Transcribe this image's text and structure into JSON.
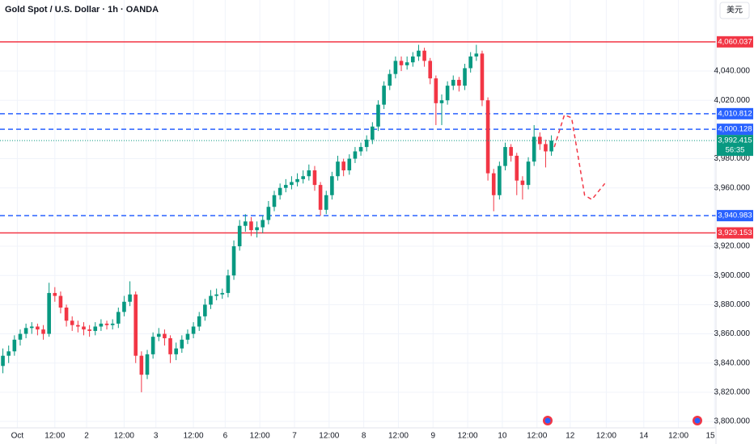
{
  "chart_data": {
    "type": "candlestick",
    "title": "Gold Spot / U.S. Dollar · 1h · OANDA",
    "currency": "美元",
    "countdown": "56:35",
    "xlim": [
      0,
      248
    ],
    "ylim": [
      3795.6,
      4088.7
    ],
    "grid": true,
    "up_color": "#089981",
    "down_color": "#f23645",
    "yticks": [
      {
        "value": 3800,
        "label": "3,800.000"
      },
      {
        "value": 3820,
        "label": "3,820.000"
      },
      {
        "value": 3840,
        "label": "3,840.000"
      },
      {
        "value": 3860,
        "label": "3,860.000"
      },
      {
        "value": 3880,
        "label": "3,880.000"
      },
      {
        "value": 3900,
        "label": "3,900.000"
      },
      {
        "value": 3920,
        "label": "3,920.000"
      },
      {
        "value": 3960,
        "label": "3,960.000"
      },
      {
        "value": 3980,
        "label": "3,980.000"
      },
      {
        "value": 4020,
        "label": "4,020.000"
      },
      {
        "value": 4040,
        "label": "4,040.000"
      }
    ],
    "xticks": [
      {
        "value": 6,
        "label": "Oct"
      },
      {
        "value": 19,
        "label": "12:00"
      },
      {
        "value": 30,
        "label": "2"
      },
      {
        "value": 43,
        "label": "12:00"
      },
      {
        "value": 54,
        "label": "3"
      },
      {
        "value": 67,
        "label": "12:00"
      },
      {
        "value": 78,
        "label": "6"
      },
      {
        "value": 90,
        "label": "12:00"
      },
      {
        "value": 102,
        "label": "7"
      },
      {
        "value": 114,
        "label": "12:00"
      },
      {
        "value": 126,
        "label": "8"
      },
      {
        "value": 138,
        "label": "12:00"
      },
      {
        "value": 150,
        "label": "9"
      },
      {
        "value": 162,
        "label": "12:00"
      },
      {
        "value": 174,
        "label": "10"
      },
      {
        "value": 186,
        "label": "12:00"
      },
      {
        "value": 197.5,
        "label": "12"
      },
      {
        "value": 210,
        "label": "12:00"
      },
      {
        "value": 223,
        "label": "14"
      },
      {
        "value": 235,
        "label": "12:00"
      },
      {
        "value": 247.5,
        "label": "15"
      }
    ],
    "levels": [
      {
        "value": 4060.037,
        "label": "4,060.037",
        "color": "#f23645",
        "style": "solid"
      },
      {
        "value": 4010.812,
        "label": "4,010.812",
        "color": "#2962ff",
        "style": "dashed"
      },
      {
        "value": 4000.128,
        "label": "4,000.128",
        "color": "#2962ff",
        "style": "dashed"
      },
      {
        "value": 3940.983,
        "label": "3,940.983",
        "color": "#2962ff",
        "style": "dashed"
      },
      {
        "value": 3929.153,
        "label": "3,929.153",
        "color": "#f23645",
        "style": "solid"
      }
    ],
    "last_price": {
      "value": 3992.415,
      "label": "3,992.415",
      "color": "#089981"
    },
    "forecast": {
      "color": "#f23645",
      "x": [
        192,
        195.5,
        198,
        202.5,
        205,
        209.5
      ],
      "y": [
        3988,
        4010,
        4008,
        3955,
        3952,
        3963
      ]
    },
    "x": [
      1,
      3,
      5,
      7,
      9,
      11,
      13,
      15,
      17,
      19,
      21,
      23,
      25,
      27,
      29,
      31,
      33,
      35,
      37,
      39,
      41,
      43,
      45,
      47,
      49,
      51,
      53,
      55,
      57,
      59,
      61,
      63,
      65,
      67,
      69,
      71,
      73,
      75,
      77,
      79,
      81,
      83,
      85,
      87,
      89,
      91,
      93,
      95,
      97,
      99,
      101,
      103,
      105,
      107,
      109,
      111,
      113,
      115,
      117,
      119,
      121,
      123,
      125,
      127,
      129,
      131,
      133,
      135,
      137,
      139,
      141,
      143,
      145,
      147,
      149,
      151,
      153,
      155,
      157,
      159,
      161,
      163,
      165,
      167,
      169,
      171,
      173,
      175,
      177,
      179,
      181,
      183,
      185,
      187,
      189,
      191
    ],
    "open": [
      3838,
      3845,
      3848,
      3856,
      3860,
      3864,
      3865,
      3863,
      3860,
      3888,
      3886,
      3878,
      3869,
      3866,
      3865,
      3863,
      3862,
      3865,
      3867,
      3866,
      3867,
      3875,
      3882,
      3887,
      3845,
      3832,
      3846,
      3858,
      3860,
      3857,
      3846,
      3850,
      3856,
      3860,
      3865,
      3872,
      3880,
      3886,
      3887,
      3888,
      3900,
      3920,
      3934,
      3937,
      3931,
      3933,
      3938,
      3947,
      3955,
      3960,
      3962,
      3964,
      3966,
      3968,
      3972,
      3962,
      3945,
      3955,
      3968,
      3978,
      3972,
      3980,
      3985,
      3988,
      3993,
      4002,
      4017,
      4030,
      4038,
      4047,
      4044,
      4046,
      4050,
      4054,
      4047,
      4035,
      4018,
      4020,
      4030,
      4034,
      4030,
      4042,
      4050,
      4052,
      4020,
      3970,
      3955,
      3975,
      3988,
      3982,
      3965,
      3962,
      3978,
      3995,
      3990,
      3985
    ],
    "high": [
      3850,
      3852,
      3859,
      3863,
      3867,
      3868,
      3867,
      3866,
      3895,
      3892,
      3889,
      3880,
      3872,
      3869,
      3868,
      3866,
      3868,
      3870,
      3869,
      3870,
      3878,
      3886,
      3896,
      3889,
      3848,
      3849,
      3861,
      3864,
      3863,
      3859,
      3854,
      3859,
      3863,
      3868,
      3875,
      3884,
      3890,
      3891,
      3891,
      3904,
      3924,
      3938,
      3942,
      3940,
      3937,
      3941,
      3951,
      3958,
      3963,
      3966,
      3968,
      3970,
      3972,
      3976,
      3975,
      3964,
      3958,
      3971,
      3982,
      3980,
      3983,
      3988,
      3991,
      3996,
      4005,
      4020,
      4033,
      4041,
      4050,
      4050,
      4050,
      4053,
      4058,
      4056,
      4049,
      4037,
      4024,
      4033,
      4037,
      4036,
      4045,
      4053,
      4058,
      4054,
      4022,
      3973,
      3978,
      3991,
      3990,
      3984,
      3968,
      3981,
      4003,
      3998,
      3993,
      3996
    ],
    "low": [
      3833,
      3840,
      3845,
      3852,
      3857,
      3860,
      3859,
      3856,
      3858,
      3882,
      3874,
      3865,
      3862,
      3861,
      3859,
      3858,
      3859,
      3862,
      3863,
      3863,
      3864,
      3872,
      3879,
      3840,
      3820,
      3829,
      3843,
      3855,
      3852,
      3840,
      3842,
      3847,
      3853,
      3857,
      3862,
      3869,
      3877,
      3883,
      3884,
      3885,
      3897,
      3917,
      3930,
      3927,
      3926,
      3929,
      3935,
      3944,
      3952,
      3957,
      3959,
      3961,
      3963,
      3965,
      3958,
      3941,
      3942,
      3952,
      3965,
      3968,
      3969,
      3977,
      3982,
      3985,
      3990,
      3999,
      4014,
      4027,
      4035,
      4040,
      4041,
      4043,
      4047,
      4043,
      4031,
      4003,
      4003,
      4017,
      4027,
      4026,
      4027,
      4039,
      4047,
      4016,
      3965,
      3944,
      3952,
      3972,
      3978,
      3955,
      3952,
      3959,
      3975,
      3986,
      3974,
      3982
    ],
    "close": [
      3845,
      3848,
      3856,
      3860,
      3864,
      3865,
      3863,
      3860,
      3888,
      3886,
      3878,
      3869,
      3866,
      3865,
      3863,
      3862,
      3865,
      3867,
      3866,
      3867,
      3875,
      3882,
      3887,
      3845,
      3832,
      3846,
      3858,
      3860,
      3857,
      3846,
      3850,
      3856,
      3860,
      3865,
      3872,
      3880,
      3886,
      3887,
      3888,
      3900,
      3920,
      3934,
      3937,
      3931,
      3933,
      3938,
      3947,
      3955,
      3960,
      3962,
      3964,
      3966,
      3968,
      3972,
      3962,
      3945,
      3955,
      3968,
      3978,
      3972,
      3980,
      3985,
      3988,
      3993,
      4002,
      4017,
      4030,
      4038,
      4047,
      4044,
      4046,
      4050,
      4054,
      4047,
      4035,
      4018,
      4020,
      4030,
      4034,
      4030,
      4042,
      4050,
      4052,
      4020,
      3970,
      3955,
      3975,
      3988,
      3982,
      3965,
      3962,
      3978,
      3995,
      3990,
      3985,
      3992.415
    ]
  }
}
